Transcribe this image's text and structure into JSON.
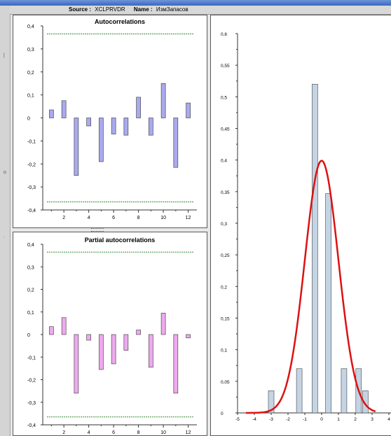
{
  "header": {
    "source_label": "Source :",
    "source_value": "XCLPRVDR",
    "name_label": "Name :",
    "name_value": "ИзмЗапасов"
  },
  "colors": {
    "acf_bar": "#aaaaee",
    "pacf_bar": "#eeaaee",
    "hist_bar": "#c4d4e4",
    "confidence_line": "#3a8a3a",
    "normal_curve": "#dd1111"
  },
  "chart_data": [
    {
      "id": "acf",
      "type": "bar",
      "title": "Autocorrelations",
      "x": [
        1,
        2,
        3,
        4,
        5,
        6,
        7,
        8,
        9,
        10,
        11,
        12
      ],
      "values": [
        0.035,
        0.075,
        -0.25,
        -0.035,
        -0.19,
        -0.07,
        -0.075,
        0.09,
        -0.075,
        0.15,
        -0.215,
        0.065
      ],
      "confidence": 0.365,
      "xticks": [
        2,
        4,
        6,
        8,
        10,
        12
      ],
      "yticks": [
        "0,4",
        "0,3",
        "0,2",
        "0,1",
        "0",
        "-0,1",
        "-0,2",
        "-0,3",
        "-0,4"
      ],
      "ylim": [
        -0.4,
        0.4
      ],
      "xlim": [
        0.3,
        12.7
      ]
    },
    {
      "id": "pacf",
      "type": "bar",
      "title": "Partial autocorrelations",
      "x": [
        1,
        2,
        3,
        4,
        5,
        6,
        7,
        8,
        9,
        10,
        11,
        12
      ],
      "values": [
        0.035,
        0.075,
        -0.26,
        -0.025,
        -0.155,
        -0.13,
        -0.07,
        0.02,
        -0.145,
        0.095,
        -0.26,
        -0.015
      ],
      "confidence": 0.365,
      "xticks": [
        2,
        4,
        6,
        8,
        10,
        12
      ],
      "yticks": [
        "0,4",
        "0,3",
        "0,2",
        "0,1",
        "0",
        "-0,1",
        "-0,2",
        "-0,3",
        "-0,4"
      ],
      "ylim": [
        -0.4,
        0.4
      ],
      "xlim": [
        0.3,
        12.7
      ]
    },
    {
      "id": "hist",
      "type": "bar",
      "title": "",
      "x": [
        -3,
        -1.33,
        -0.4,
        0.4,
        1.33,
        2.2,
        2.6
      ],
      "values": [
        0.035,
        0.07,
        0.52,
        0.347,
        0.07,
        0.07,
        0.035
      ],
      "curve": {
        "name": "normal",
        "mean": 0,
        "sd": 1
      },
      "xticks": [
        "-5",
        "-4",
        "-3",
        "-2",
        "-1",
        "0",
        "1",
        "2",
        "3",
        "4"
      ],
      "yticks": [
        "0,6",
        "0,55",
        "0,5",
        "0,45",
        "0,4",
        "0,35",
        "0,3",
        "0,25",
        "0,2",
        "0,15",
        "0,1",
        "0,05",
        "0"
      ],
      "ylim": [
        0,
        0.6
      ],
      "xlim": [
        -5,
        4
      ]
    }
  ]
}
